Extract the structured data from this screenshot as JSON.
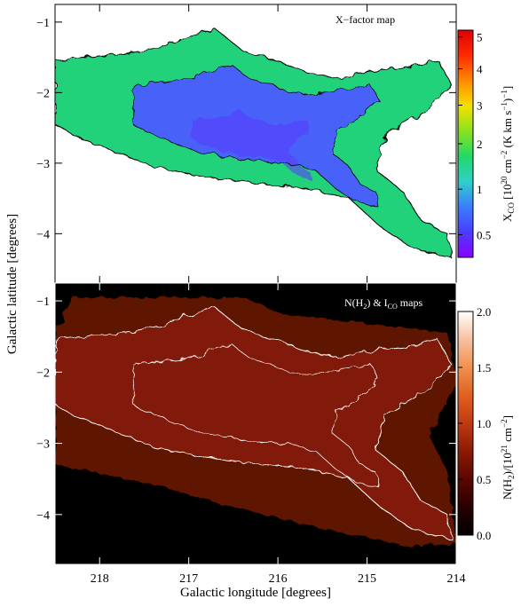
{
  "chart_data": [
    {
      "type": "heatmap",
      "panel": "top",
      "title": "X−factor map",
      "xlabel": "Galactic longitude [degrees]",
      "ylabel": "Galactic latitude [degrees]",
      "xlim": [
        218.5,
        214.0
      ],
      "ylim": [
        -4.7,
        -0.75
      ],
      "x_ticks": [
        218,
        217,
        216,
        215,
        214
      ],
      "y_ticks": [
        -1,
        -2,
        -3,
        -4
      ],
      "colorbar": {
        "label_main": "X",
        "label_sub": "CO",
        "label_rest": " [10",
        "label_sup1": "20",
        "label_rest2": " cm",
        "label_sup2": "−2",
        "label_rest3": " (K km s",
        "label_sup3": "−1",
        "label_rest4": ")",
        "label_sup4": "−1",
        "label_rest5": "]",
        "ticks": [
          "0.5",
          "1",
          "2",
          "3",
          "4",
          "5"
        ],
        "tick_values": [
          0.5,
          1,
          2,
          3,
          4,
          5
        ],
        "colormap": [
          "#8a00ff",
          "#4a3cff",
          "#3a7dff",
          "#2fd0c8",
          "#22d96a",
          "#8ae21c",
          "#f6e000",
          "#ff8a00",
          "#ff2a00",
          "#e00000"
        ]
      },
      "cloud_boundary": [
        [
          218.5,
          -1.55
        ],
        [
          218.2,
          -1.5
        ],
        [
          217.7,
          -1.45
        ],
        [
          217.3,
          -1.35
        ],
        [
          217.0,
          -1.2
        ],
        [
          216.7,
          -1.1
        ],
        [
          216.4,
          -1.4
        ],
        [
          216.0,
          -1.55
        ],
        [
          215.7,
          -1.7
        ],
        [
          215.3,
          -1.8
        ],
        [
          215.0,
          -1.7
        ],
        [
          214.6,
          -1.65
        ],
        [
          214.2,
          -1.55
        ],
        [
          214.05,
          -1.9
        ],
        [
          214.4,
          -2.3
        ],
        [
          214.8,
          -2.6
        ],
        [
          214.9,
          -3.1
        ],
        [
          214.6,
          -3.4
        ],
        [
          214.4,
          -3.8
        ],
        [
          214.1,
          -4.0
        ],
        [
          214.05,
          -4.35
        ],
        [
          214.5,
          -4.2
        ],
        [
          214.85,
          -3.9
        ],
        [
          215.2,
          -3.5
        ],
        [
          215.7,
          -3.35
        ],
        [
          216.2,
          -3.3
        ],
        [
          216.8,
          -3.2
        ],
        [
          217.4,
          -3.05
        ],
        [
          217.9,
          -2.8
        ],
        [
          218.3,
          -2.6
        ],
        [
          218.5,
          -2.45
        ]
      ]
    },
    {
      "type": "heatmap",
      "panel": "bottom",
      "title_pre": "N(H",
      "title_sub": "2",
      "title_post": ") & I",
      "title_sub2": "CO",
      "title_end": " maps",
      "xlim": [
        218.5,
        214.0
      ],
      "ylim": [
        -4.7,
        -0.75
      ],
      "x_ticks": [
        218,
        217,
        216,
        215,
        214
      ],
      "y_ticks": [
        -1,
        -2,
        -3,
        -4
      ],
      "colorbar": {
        "label_pre": "N(H",
        "label_sub": "2",
        "label_mid": ")/[10",
        "label_sup1": "21",
        "label_rest": " cm",
        "label_sup2": "−2",
        "label_end": "]",
        "ticks": [
          "0.0",
          "0.5",
          "1.0",
          "1.5",
          "2.0"
        ],
        "tick_values": [
          0.0,
          0.5,
          1.0,
          1.5,
          2.0
        ],
        "colormap": [
          "#000000",
          "#2a0000",
          "#5a0700",
          "#8c1a05",
          "#c03a10",
          "#e06020",
          "#f09050",
          "#f8c0a0",
          "#ffffff"
        ]
      },
      "map_extent": [
        [
          218.3,
          -0.95
        ],
        [
          216.4,
          -0.95
        ],
        [
          215.9,
          -1.2
        ],
        [
          214.8,
          -1.35
        ],
        [
          214.1,
          -1.45
        ],
        [
          214.0,
          -2.1
        ],
        [
          214.3,
          -2.9
        ],
        [
          214.1,
          -3.4
        ],
        [
          214.0,
          -4.4
        ],
        [
          214.5,
          -4.45
        ],
        [
          215.5,
          -4.2
        ],
        [
          216.5,
          -3.9
        ],
        [
          217.5,
          -3.55
        ],
        [
          218.5,
          -3.3
        ],
        [
          218.5,
          -1.45
        ]
      ]
    }
  ]
}
